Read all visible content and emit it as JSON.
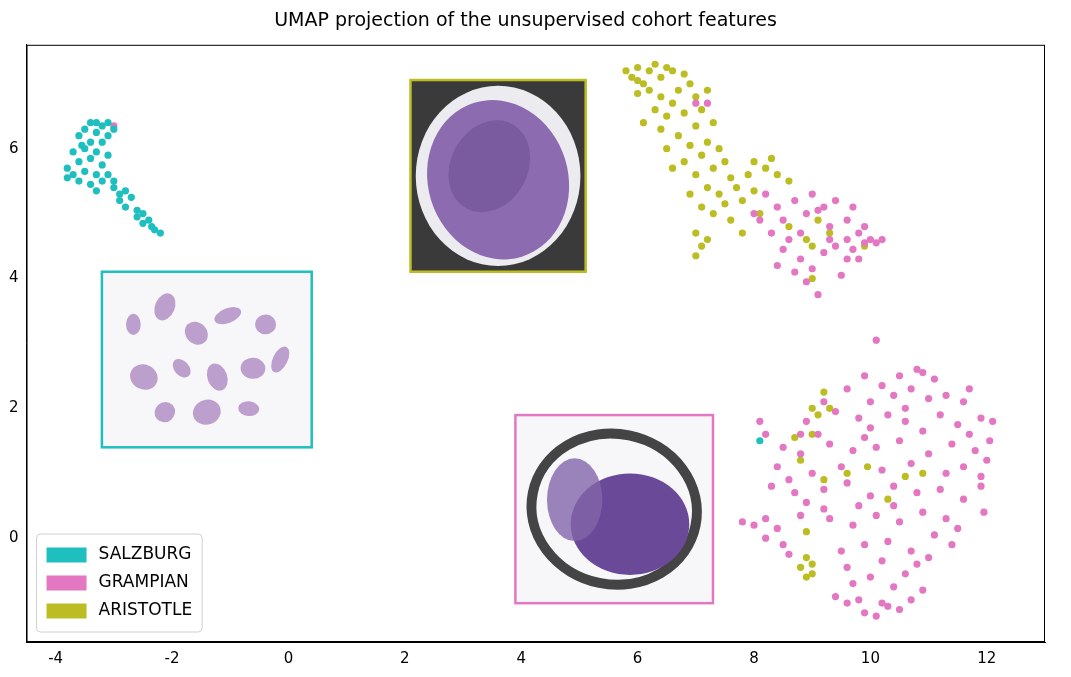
{
  "chart_data": {
    "type": "scatter",
    "title": "UMAP projection of the unsupervised cohort features",
    "xlim": [
      -4.5,
      13
    ],
    "xticks": [
      -4,
      -2,
      0,
      2,
      4,
      6,
      8,
      10,
      12
    ],
    "ylim": [
      -1.6,
      7.6
    ],
    "yticks": [
      0,
      2,
      4,
      6
    ],
    "grid": false,
    "legend": "lower left",
    "marker": "circle",
    "series": [
      {
        "name": "SALZBURG",
        "color": "#1fbfbf",
        "values": [
          [
            -3.4,
            6.4
          ],
          [
            -3.3,
            6.4
          ],
          [
            -3.2,
            6.35
          ],
          [
            -3.1,
            6.4
          ],
          [
            -3.5,
            6.3
          ],
          [
            -3.3,
            6.25
          ],
          [
            -3.1,
            6.2
          ],
          [
            -3.6,
            6.2
          ],
          [
            -3.4,
            6.1
          ],
          [
            -3.2,
            6.1
          ],
          [
            -3.7,
            5.95
          ],
          [
            -3.5,
            6.0
          ],
          [
            -3.3,
            5.95
          ],
          [
            -3.1,
            5.9
          ],
          [
            -3.6,
            5.8
          ],
          [
            -3.4,
            5.85
          ],
          [
            -3.2,
            5.75
          ],
          [
            -3.8,
            5.7
          ],
          [
            -3.7,
            5.6
          ],
          [
            -3.5,
            5.65
          ],
          [
            -3.3,
            5.6
          ],
          [
            -3.1,
            5.6
          ],
          [
            -3.8,
            5.55
          ],
          [
            -3.6,
            5.5
          ],
          [
            -3.4,
            5.45
          ],
          [
            -3.2,
            5.5
          ],
          [
            -3.0,
            5.5
          ],
          [
            -3.3,
            5.35
          ],
          [
            -3.0,
            5.4
          ],
          [
            -2.9,
            5.3
          ],
          [
            -2.8,
            5.35
          ],
          [
            -2.9,
            5.2
          ],
          [
            -2.7,
            5.25
          ],
          [
            -2.8,
            5.1
          ],
          [
            -2.6,
            5.05
          ],
          [
            -2.5,
            5.0
          ],
          [
            -2.6,
            4.95
          ],
          [
            -2.4,
            4.9
          ],
          [
            -2.5,
            4.85
          ],
          [
            -2.35,
            4.8
          ],
          [
            -2.3,
            4.75
          ],
          [
            -2.2,
            4.7
          ],
          [
            -3.55,
            6.05
          ],
          [
            -3.0,
            6.3
          ],
          [
            8.1,
            1.5
          ]
        ]
      },
      {
        "name": "GRAMPIAN",
        "color": "#e377c2",
        "values": [
          [
            -3.0,
            6.35
          ],
          [
            7.0,
            6.7
          ],
          [
            7.2,
            6.7
          ],
          [
            8.2,
            5.3
          ],
          [
            8.4,
            5.1
          ],
          [
            8.5,
            4.9
          ],
          [
            8.7,
            5.2
          ],
          [
            8.8,
            4.7
          ],
          [
            8.9,
            5.0
          ],
          [
            9.0,
            5.3
          ],
          [
            9.2,
            5.1
          ],
          [
            9.3,
            4.8
          ],
          [
            9.4,
            5.2
          ],
          [
            9.6,
            4.9
          ],
          [
            9.7,
            5.1
          ],
          [
            9.8,
            4.7
          ],
          [
            9.9,
            4.8
          ],
          [
            10.0,
            4.6
          ],
          [
            10.1,
            4.55
          ],
          [
            9.9,
            4.55
          ],
          [
            9.7,
            4.45
          ],
          [
            9.6,
            4.6
          ],
          [
            9.4,
            4.5
          ],
          [
            9.2,
            4.4
          ],
          [
            8.6,
            4.6
          ],
          [
            8.5,
            4.45
          ],
          [
            8.3,
            4.7
          ],
          [
            8.1,
            4.9
          ],
          [
            8.4,
            4.2
          ],
          [
            8.8,
            4.3
          ],
          [
            8.9,
            3.95
          ],
          [
            9.1,
            3.75
          ],
          [
            9.0,
            4.15
          ],
          [
            9.6,
            4.3
          ],
          [
            9.5,
            4.05
          ],
          [
            10.2,
            4.6
          ],
          [
            9.8,
            4.3
          ],
          [
            8.0,
            5.0
          ],
          [
            8.7,
            4.1
          ],
          [
            9.3,
            4.6
          ],
          [
            9.1,
            5.05
          ],
          [
            10.8,
            2.6
          ],
          [
            10.9,
            2.55
          ],
          [
            10.5,
            2.5
          ],
          [
            11.1,
            2.45
          ],
          [
            9.9,
            2.5
          ],
          [
            9.6,
            2.3
          ],
          [
            10.2,
            2.35
          ],
          [
            10.7,
            2.3
          ],
          [
            11.3,
            2.2
          ],
          [
            11.6,
            2.1
          ],
          [
            9.2,
            2.1
          ],
          [
            10.0,
            2.1
          ],
          [
            10.4,
            2.2
          ],
          [
            11.0,
            2.15
          ],
          [
            8.9,
            1.8
          ],
          [
            9.4,
            1.95
          ],
          [
            9.8,
            1.85
          ],
          [
            10.3,
            1.9
          ],
          [
            10.6,
            1.8
          ],
          [
            11.2,
            1.9
          ],
          [
            11.5,
            1.75
          ],
          [
            11.9,
            1.85
          ],
          [
            12.1,
            1.8
          ],
          [
            9.1,
            1.6
          ],
          [
            10.0,
            1.7
          ],
          [
            10.9,
            1.65
          ],
          [
            11.7,
            1.6
          ],
          [
            8.1,
            1.8
          ],
          [
            8.2,
            1.6
          ],
          [
            8.5,
            1.4
          ],
          [
            8.8,
            1.3
          ],
          [
            9.3,
            1.45
          ],
          [
            9.7,
            1.35
          ],
          [
            10.1,
            1.4
          ],
          [
            10.5,
            1.5
          ],
          [
            11.0,
            1.3
          ],
          [
            11.4,
            1.45
          ],
          [
            11.8,
            1.35
          ],
          [
            12.0,
            1.2
          ],
          [
            8.4,
            1.1
          ],
          [
            9.0,
            1.0
          ],
          [
            9.5,
            1.1
          ],
          [
            10.2,
            1.05
          ],
          [
            10.7,
            1.15
          ],
          [
            11.3,
            1.0
          ],
          [
            11.9,
            0.95
          ],
          [
            8.3,
            0.8
          ],
          [
            8.7,
            0.7
          ],
          [
            8.6,
            0.9
          ],
          [
            9.2,
            0.75
          ],
          [
            9.6,
            0.85
          ],
          [
            10.0,
            0.65
          ],
          [
            10.4,
            0.8
          ],
          [
            10.8,
            0.7
          ],
          [
            11.2,
            0.75
          ],
          [
            11.6,
            0.6
          ],
          [
            11.9,
            0.8
          ],
          [
            8.9,
            0.55
          ],
          [
            9.8,
            0.5
          ],
          [
            7.8,
            0.25
          ],
          [
            8.0,
            0.2
          ],
          [
            8.2,
            0.3
          ],
          [
            8.4,
            0.15
          ],
          [
            8.8,
            0.35
          ],
          [
            9.3,
            0.3
          ],
          [
            9.7,
            0.2
          ],
          [
            10.1,
            0.35
          ],
          [
            10.5,
            0.25
          ],
          [
            10.9,
            0.4
          ],
          [
            11.3,
            0.3
          ],
          [
            11.5,
            0.15
          ],
          [
            11.1,
            0.05
          ],
          [
            8.2,
            0.0
          ],
          [
            8.5,
            -0.1
          ],
          [
            9.5,
            -0.2
          ],
          [
            9.9,
            -0.1
          ],
          [
            10.3,
            -0.05
          ],
          [
            10.7,
            -0.2
          ],
          [
            11.0,
            -0.3
          ],
          [
            11.4,
            -0.1
          ],
          [
            10.8,
            -0.4
          ],
          [
            9.6,
            -0.45
          ],
          [
            10.2,
            -0.35
          ],
          [
            8.6,
            -0.25
          ],
          [
            9.7,
            -0.7
          ],
          [
            10.0,
            -0.6
          ],
          [
            10.4,
            -0.75
          ],
          [
            10.6,
            -0.55
          ],
          [
            10.9,
            -0.8
          ],
          [
            9.4,
            -0.9
          ],
          [
            9.8,
            -0.95
          ],
          [
            10.2,
            -1.0
          ],
          [
            10.5,
            -1.1
          ],
          [
            9.9,
            -1.15
          ],
          [
            10.1,
            -1.2
          ],
          [
            10.3,
            -1.05
          ],
          [
            9.6,
            -1.0
          ],
          [
            10.7,
            -0.95
          ],
          [
            10.1,
            3.05
          ],
          [
            11.6,
            1.1
          ],
          [
            12.05,
            1.5
          ],
          [
            11.95,
            0.4
          ],
          [
            10.6,
            2.0
          ],
          [
            9.9,
            1.55
          ],
          [
            10.4,
            0.5
          ],
          [
            9.2,
            0.45
          ],
          [
            11.7,
            2.3
          ],
          [
            8.8,
            1.6
          ]
        ]
      },
      {
        "name": "ARISTOTLE",
        "color": "#bcbd22",
        "values": [
          [
            5.8,
            7.2
          ],
          [
            5.9,
            7.1
          ],
          [
            6.0,
            7.25
          ],
          [
            6.1,
            7.0
          ],
          [
            6.2,
            7.2
          ],
          [
            6.3,
            7.3
          ],
          [
            6.4,
            7.1
          ],
          [
            6.5,
            7.25
          ],
          [
            6.6,
            7.2
          ],
          [
            6.8,
            7.15
          ],
          [
            6.9,
            7.0
          ],
          [
            6.2,
            6.9
          ],
          [
            6.4,
            6.8
          ],
          [
            6.0,
            6.85
          ],
          [
            6.7,
            6.9
          ],
          [
            7.0,
            6.8
          ],
          [
            7.2,
            6.9
          ],
          [
            7.1,
            6.6
          ],
          [
            6.3,
            6.6
          ],
          [
            6.5,
            6.5
          ],
          [
            6.8,
            6.55
          ],
          [
            6.1,
            6.4
          ],
          [
            6.4,
            6.3
          ],
          [
            6.7,
            6.2
          ],
          [
            7.0,
            6.35
          ],
          [
            7.3,
            6.4
          ],
          [
            6.5,
            6.0
          ],
          [
            6.9,
            6.05
          ],
          [
            7.2,
            6.1
          ],
          [
            6.6,
            5.7
          ],
          [
            6.8,
            5.8
          ],
          [
            7.1,
            5.9
          ],
          [
            7.4,
            6.0
          ],
          [
            7.0,
            5.6
          ],
          [
            7.3,
            5.7
          ],
          [
            7.5,
            5.8
          ],
          [
            7.6,
            5.55
          ],
          [
            7.2,
            5.4
          ],
          [
            7.4,
            5.3
          ],
          [
            7.7,
            5.4
          ],
          [
            6.9,
            5.3
          ],
          [
            7.1,
            5.1
          ],
          [
            7.3,
            5.0
          ],
          [
            7.5,
            5.15
          ],
          [
            7.8,
            5.2
          ],
          [
            8.0,
            5.35
          ],
          [
            8.0,
            5.8
          ],
          [
            8.2,
            5.7
          ],
          [
            8.4,
            5.6
          ],
          [
            8.3,
            5.85
          ],
          [
            8.6,
            5.5
          ],
          [
            7.9,
            5.6
          ],
          [
            7.0,
            4.7
          ],
          [
            7.1,
            4.5
          ],
          [
            7.2,
            4.6
          ],
          [
            7.0,
            4.35
          ],
          [
            7.6,
            4.9
          ],
          [
            7.8,
            4.7
          ],
          [
            8.1,
            5.0
          ],
          [
            8.6,
            4.8
          ],
          [
            9.1,
            4.9
          ],
          [
            8.9,
            4.6
          ],
          [
            9.0,
            4.5
          ],
          [
            9.3,
            4.7
          ],
          [
            9.0,
            4.0
          ],
          [
            9.9,
            4.5
          ],
          [
            6.6,
            6.7
          ],
          [
            6.0,
            7.05
          ],
          [
            9.2,
            2.25
          ],
          [
            9.0,
            2.0
          ],
          [
            9.3,
            2.0
          ],
          [
            9.1,
            1.9
          ],
          [
            8.7,
            1.55
          ],
          [
            9.0,
            1.6
          ],
          [
            8.8,
            1.2
          ],
          [
            9.2,
            0.9
          ],
          [
            9.6,
            1.0
          ],
          [
            10.3,
            0.6
          ],
          [
            10.6,
            0.95
          ],
          [
            8.9,
            0.1
          ],
          [
            8.9,
            -0.3
          ],
          [
            9.0,
            -0.4
          ],
          [
            8.9,
            -0.6
          ],
          [
            9.0,
            -0.55
          ],
          [
            8.8,
            -0.45
          ],
          [
            10.9,
            1.0
          ],
          [
            9.95,
            1.1
          ]
        ]
      }
    ]
  }
}
